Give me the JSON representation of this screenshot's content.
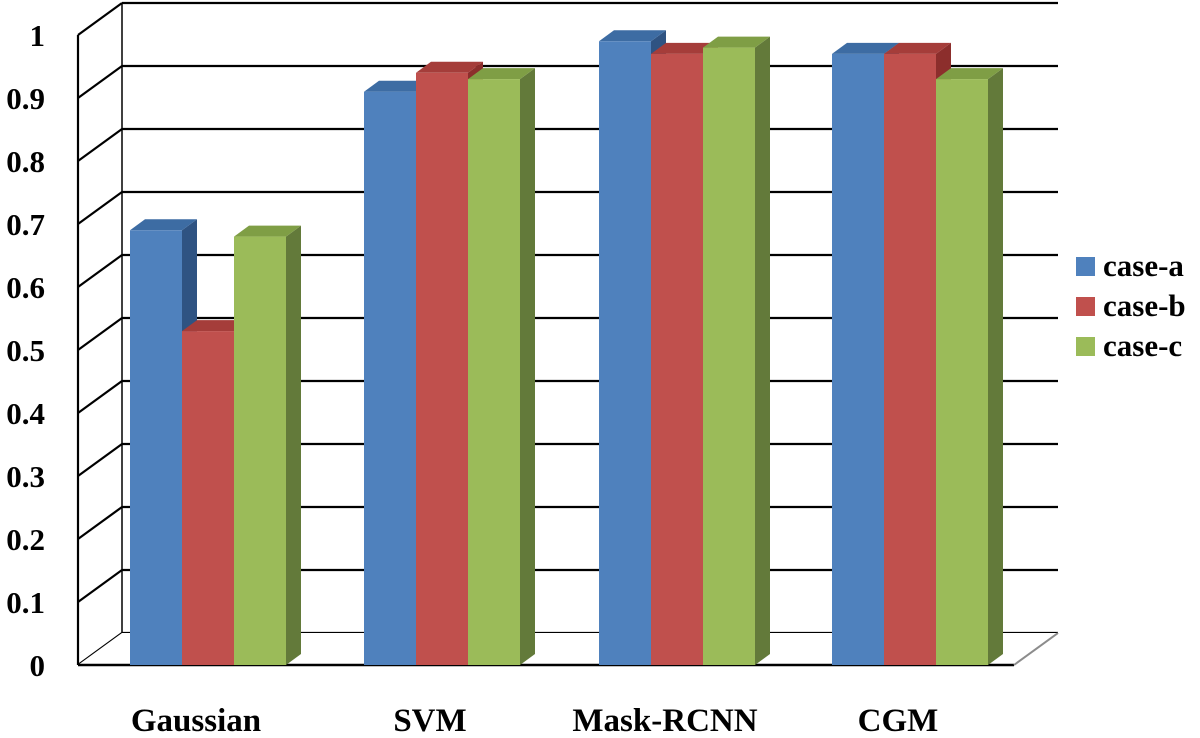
{
  "chart_data": {
    "type": "bar",
    "categories": [
      "Gaussian",
      "SVM",
      "Mask-RCNN",
      "CGM"
    ],
    "series": [
      {
        "name": "case-a",
        "values": [
          0.69,
          0.91,
          0.99,
          0.97
        ]
      },
      {
        "name": "case-b",
        "values": [
          0.53,
          0.94,
          0.97,
          0.97
        ]
      },
      {
        "name": "case-c",
        "values": [
          0.68,
          0.93,
          0.98,
          0.93
        ]
      }
    ],
    "title": "",
    "xlabel": "",
    "ylabel": "",
    "ylim": [
      0,
      1
    ],
    "yticks": [
      "0",
      "0.1",
      "0.2",
      "0.3",
      "0.4",
      "0.5",
      "0.6",
      "0.7",
      "0.8",
      "0.9",
      "1"
    ],
    "grid": true,
    "legend_position": "right",
    "three_d": true,
    "colors": {
      "case-a": {
        "front": "#4F81BD",
        "side": "#2F5382",
        "top": "#3D6CA3"
      },
      "case-b": {
        "front": "#C0504D",
        "side": "#8C2E2C",
        "top": "#A53D3A"
      },
      "case-c": {
        "front": "#9BBB59",
        "side": "#637A3A",
        "top": "#7F9E45"
      }
    }
  }
}
